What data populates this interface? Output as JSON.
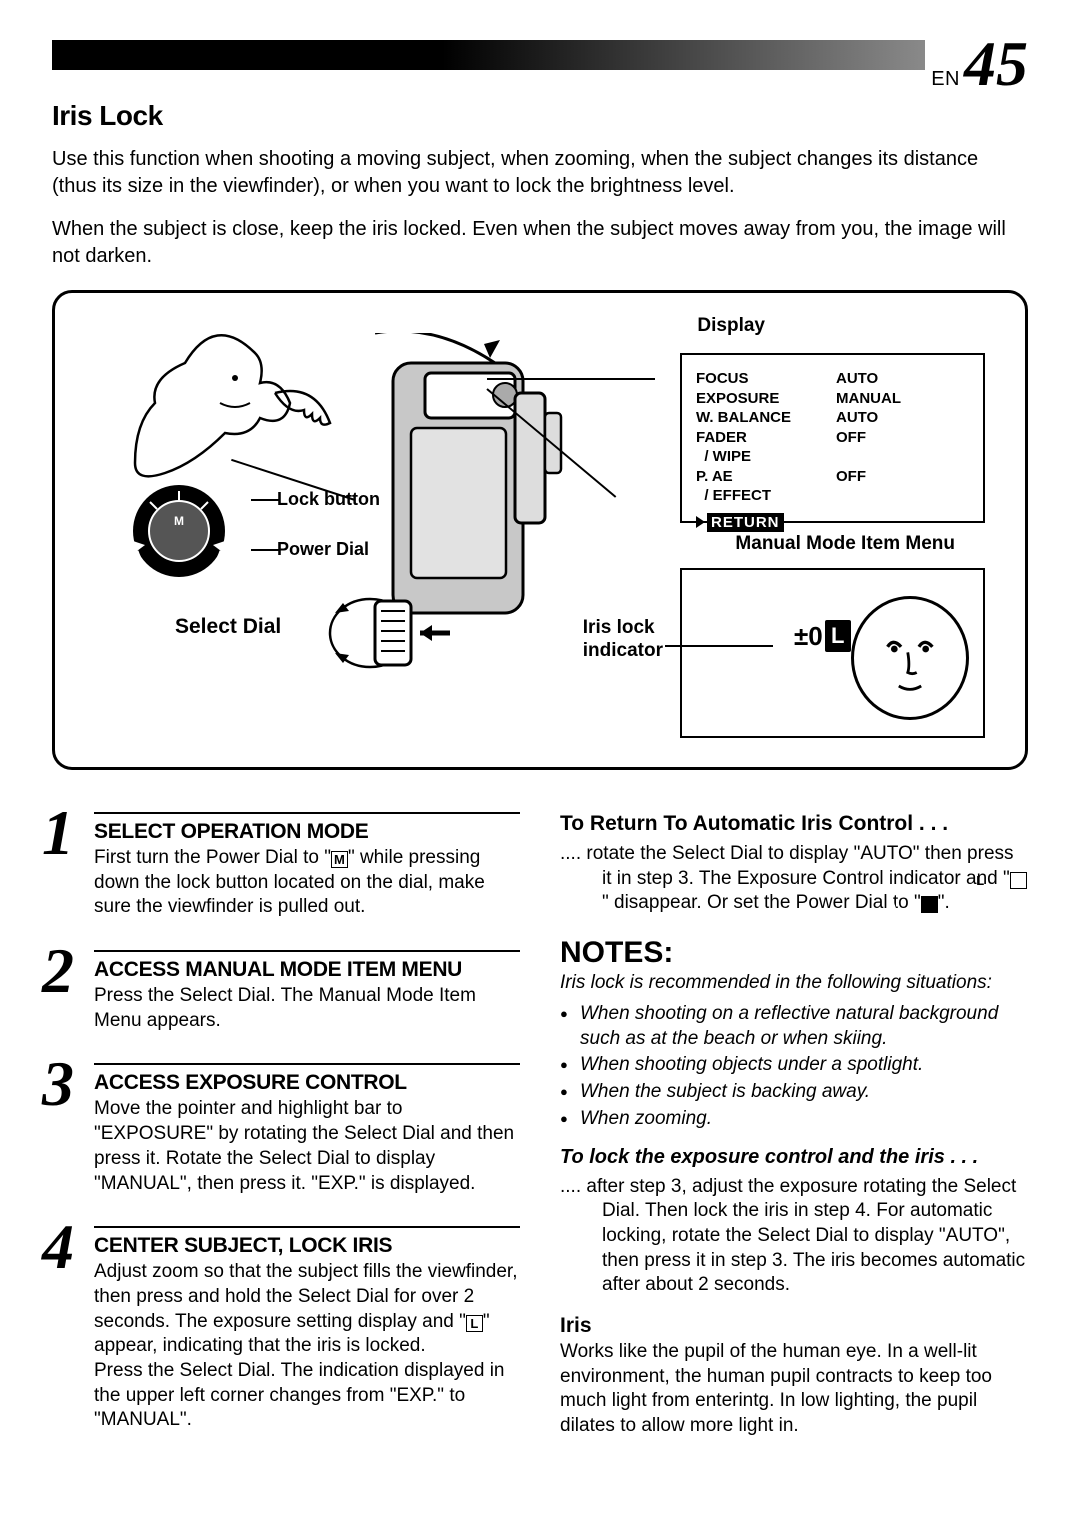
{
  "page": {
    "prefix": "EN",
    "number": "45"
  },
  "section_title": "Iris Lock",
  "intro1": "Use this function when shooting a moving subject, when zooming, when the subject changes its distance (thus its size in the viewfinder), or when you want to lock the brightness level.",
  "intro2": "When the subject is close, keep the iris locked. Even when the subject moves away from you, the image will not darken.",
  "diagram": {
    "display_title": "Display",
    "menu": {
      "rows": [
        {
          "l": "FOCUS",
          "r": "AUTO"
        },
        {
          "l": "EXPOSURE",
          "r": "MANUAL"
        },
        {
          "l": "W. BALANCE",
          "r": "AUTO"
        },
        {
          "l": "FADER",
          "r": "OFF"
        },
        {
          "l": "  / WIPE",
          "r": ""
        },
        {
          "l": "P. AE",
          "r": "OFF"
        },
        {
          "l": "  / EFFECT",
          "r": ""
        }
      ],
      "return": "RETURN"
    },
    "mm_caption": "Manual Mode Item Menu",
    "iris_badge": "±0",
    "iris_lock_label": "Iris lock\nindicator",
    "select_dial": "Select Dial",
    "lock_button": "Lock button",
    "power_dial": "Power Dial"
  },
  "steps": [
    {
      "n": "1",
      "title": "SELECT OPERATION MODE",
      "body": "First turn the Power Dial to \"{M}\" while pressing down the lock button located on the dial, make sure the viewfinder is pulled out."
    },
    {
      "n": "2",
      "title": "ACCESS MANUAL MODE ITEM MENU",
      "body": "Press the Select Dial. The Manual Mode Item Menu appears."
    },
    {
      "n": "3",
      "title": "ACCESS EXPOSURE CONTROL",
      "body": "Move the pointer and highlight bar to \"EXPOSURE\" by rotating the Select Dial and then press it. Rotate the Select Dial to display \"MANUAL\", then press it. \"EXP.\" is displayed."
    },
    {
      "n": "4",
      "title": "CENTER SUBJECT, LOCK IRIS",
      "body": "Adjust zoom so that the subject fills the viewfinder, then press and hold the Select Dial for over 2 seconds. The exposure setting display and \"{L}\" appear, indicating that the iris is locked.\nPress the Select Dial. The indication displayed in the upper left corner changes from \"EXP.\" to \"MANUAL\"."
    }
  ],
  "right": {
    "return_auto_h": "To Return To Automatic Iris Control . . .",
    "return_auto_b": ".... rotate the Select Dial to display \"AUTO\" then press it in step 3. The Exposure Control indicator and \"{L}\" disappear. Or set the Power Dial to \"{A}\".",
    "notes_h": "NOTES:",
    "notes_intro": "Iris lock is recommended in the following situations:",
    "notes_list": [
      "When shooting on a reflective natural background such as at the beach or when skiing.",
      "When shooting objects under a spotlight.",
      "When the subject is backing away.",
      "When zooming."
    ],
    "lock_h": "To lock the exposure control and the iris . . .",
    "lock_b": ".... after step 3, adjust the exposure rotating the Select Dial. Then lock the iris in step 4. For automatic locking, rotate the Select Dial to display \"AUTO\", then press it in step 3. The iris becomes automatic after about 2 seconds.",
    "iris_h": "Iris",
    "iris_b": "Works like the pupil of the human eye. In a well-lit environment, the human pupil contracts to keep too much light from enterintg. In low lighting, the pupil dilates to allow more light in."
  }
}
